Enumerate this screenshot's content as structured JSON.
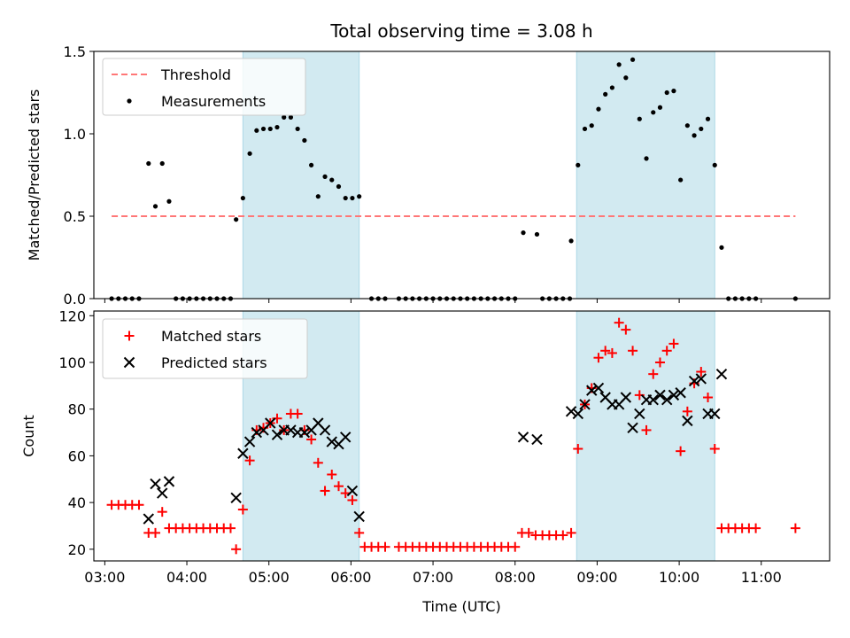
{
  "chart_data": [
    {
      "type": "scatter",
      "title": "Total observing time = 3.08 h",
      "xlabel": "",
      "ylabel": "Matched/Predicted stars",
      "ylim": [
        0,
        1.5
      ],
      "yticks": [
        "0.0",
        "0.5",
        "1.0",
        "1.5"
      ],
      "xlim": [
        "02:52",
        "11:50"
      ],
      "shaded_intervals": [
        [
          "04:41",
          "06:06"
        ],
        [
          "08:45",
          "10:26"
        ]
      ],
      "shade_color": "#add8e6",
      "grid": false,
      "legend": {
        "position": "top-left",
        "entries": [
          "Threshold",
          "Measurements"
        ]
      },
      "threshold": {
        "name": "Threshold",
        "value": 0.5,
        "x_range": [
          "03:05",
          "11:25"
        ],
        "color": "#ff7777"
      },
      "measurements": {
        "name": "Measurements",
        "color": "#000000",
        "points": [
          [
            "03:05",
            0
          ],
          [
            "03:10",
            0
          ],
          [
            "03:15",
            0
          ],
          [
            "03:20",
            0
          ],
          [
            "03:25",
            0
          ],
          [
            "03:32",
            0.82
          ],
          [
            "03:37",
            0.56
          ],
          [
            "03:42",
            0.82
          ],
          [
            "03:47",
            0.59
          ],
          [
            "03:52",
            0
          ],
          [
            "03:57",
            0
          ],
          [
            "04:02",
            0
          ],
          [
            "04:07",
            0
          ],
          [
            "04:12",
            0
          ],
          [
            "04:17",
            0
          ],
          [
            "04:22",
            0
          ],
          [
            "04:27",
            0
          ],
          [
            "04:32",
            0
          ],
          [
            "04:36",
            0.48
          ],
          [
            "04:41",
            0.61
          ],
          [
            "04:46",
            0.88
          ],
          [
            "04:51",
            1.02
          ],
          [
            "04:56",
            1.03
          ],
          [
            "05:01",
            1.03
          ],
          [
            "05:06",
            1.04
          ],
          [
            "05:11",
            1.1
          ],
          [
            "05:16",
            1.1
          ],
          [
            "05:21",
            1.03
          ],
          [
            "05:26",
            0.96
          ],
          [
            "05:31",
            0.81
          ],
          [
            "05:36",
            0.62
          ],
          [
            "05:41",
            0.74
          ],
          [
            "05:46",
            0.72
          ],
          [
            "05:51",
            0.68
          ],
          [
            "05:56",
            0.61
          ],
          [
            "06:01",
            0.61
          ],
          [
            "06:06",
            0.62
          ],
          [
            "06:15",
            0
          ],
          [
            "06:20",
            0
          ],
          [
            "06:25",
            0
          ],
          [
            "06:35",
            0
          ],
          [
            "06:40",
            0
          ],
          [
            "06:45",
            0
          ],
          [
            "06:50",
            0
          ],
          [
            "06:55",
            0
          ],
          [
            "07:00",
            0
          ],
          [
            "07:05",
            0
          ],
          [
            "07:10",
            0
          ],
          [
            "07:15",
            0
          ],
          [
            "07:20",
            0
          ],
          [
            "07:25",
            0
          ],
          [
            "07:30",
            0
          ],
          [
            "07:35",
            0
          ],
          [
            "07:40",
            0
          ],
          [
            "07:45",
            0
          ],
          [
            "07:50",
            0
          ],
          [
            "07:55",
            0
          ],
          [
            "08:00",
            0
          ],
          [
            "08:06",
            0.4
          ],
          [
            "08:16",
            0.39
          ],
          [
            "08:20",
            0
          ],
          [
            "08:25",
            0
          ],
          [
            "08:30",
            0
          ],
          [
            "08:35",
            0
          ],
          [
            "08:40",
            0
          ],
          [
            "08:41",
            0.35
          ],
          [
            "08:46",
            0.81
          ],
          [
            "08:51",
            1.03
          ],
          [
            "08:56",
            1.05
          ],
          [
            "09:01",
            1.15
          ],
          [
            "09:06",
            1.24
          ],
          [
            "09:11",
            1.28
          ],
          [
            "09:16",
            1.42
          ],
          [
            "09:21",
            1.34
          ],
          [
            "09:26",
            1.45
          ],
          [
            "09:31",
            1.09
          ],
          [
            "09:36",
            0.85
          ],
          [
            "09:41",
            1.13
          ],
          [
            "09:46",
            1.16
          ],
          [
            "09:51",
            1.25
          ],
          [
            "09:56",
            1.26
          ],
          [
            "10:01",
            0.72
          ],
          [
            "10:06",
            1.05
          ],
          [
            "10:11",
            0.99
          ],
          [
            "10:16",
            1.03
          ],
          [
            "10:21",
            1.09
          ],
          [
            "10:26",
            0.81
          ],
          [
            "10:31",
            0.31
          ],
          [
            "10:36",
            0
          ],
          [
            "10:41",
            0
          ],
          [
            "10:46",
            0
          ],
          [
            "10:51",
            0
          ],
          [
            "10:56",
            0
          ],
          [
            "11:25",
            0
          ]
        ]
      },
      "xticks": [
        "03:00",
        "04:00",
        "05:00",
        "06:00",
        "07:00",
        "08:00",
        "09:00",
        "10:00",
        "11:00"
      ]
    },
    {
      "type": "scatter",
      "xlabel": "Time (UTC)",
      "ylabel": "Count",
      "ylim": [
        15,
        122
      ],
      "yticks": [
        "20",
        "40",
        "60",
        "80",
        "100",
        "120"
      ],
      "xlim": [
        "02:52",
        "11:50"
      ],
      "xticks": [
        "03:00",
        "04:00",
        "05:00",
        "06:00",
        "07:00",
        "08:00",
        "09:00",
        "10:00",
        "11:00"
      ],
      "shaded_intervals": [
        [
          "04:41",
          "06:06"
        ],
        [
          "08:45",
          "10:26"
        ]
      ],
      "grid": false,
      "legend": {
        "position": "top-left",
        "entries": [
          "Matched stars",
          "Predicted stars"
        ]
      },
      "series": [
        {
          "name": "Matched stars",
          "marker": "plus",
          "color": "#ff0000",
          "points": [
            [
              "03:05",
              39
            ],
            [
              "03:10",
              39
            ],
            [
              "03:15",
              39
            ],
            [
              "03:20",
              39
            ],
            [
              "03:25",
              39
            ],
            [
              "03:32",
              27
            ],
            [
              "03:37",
              27
            ],
            [
              "03:42",
              36
            ],
            [
              "03:47",
              29
            ],
            [
              "03:52",
              29
            ],
            [
              "03:57",
              29
            ],
            [
              "04:02",
              29
            ],
            [
              "04:07",
              29
            ],
            [
              "04:12",
              29
            ],
            [
              "04:17",
              29
            ],
            [
              "04:22",
              29
            ],
            [
              "04:27",
              29
            ],
            [
              "04:32",
              29
            ],
            [
              "04:36",
              20
            ],
            [
              "04:41",
              37
            ],
            [
              "04:46",
              58
            ],
            [
              "04:51",
              71
            ],
            [
              "04:56",
              72
            ],
            [
              "05:01",
              74
            ],
            [
              "05:06",
              76
            ],
            [
              "05:11",
              71
            ],
            [
              "05:16",
              78
            ],
            [
              "05:21",
              78
            ],
            [
              "05:26",
              71
            ],
            [
              "05:31",
              67
            ],
            [
              "05:36",
              57
            ],
            [
              "05:41",
              45
            ],
            [
              "05:46",
              52
            ],
            [
              "05:51",
              47
            ],
            [
              "05:56",
              44
            ],
            [
              "06:01",
              41
            ],
            [
              "06:06",
              27
            ],
            [
              "06:10",
              21
            ],
            [
              "06:15",
              21
            ],
            [
              "06:20",
              21
            ],
            [
              "06:25",
              21
            ],
            [
              "06:35",
              21
            ],
            [
              "06:40",
              21
            ],
            [
              "06:45",
              21
            ],
            [
              "06:50",
              21
            ],
            [
              "06:55",
              21
            ],
            [
              "07:00",
              21
            ],
            [
              "07:05",
              21
            ],
            [
              "07:10",
              21
            ],
            [
              "07:15",
              21
            ],
            [
              "07:20",
              21
            ],
            [
              "07:25",
              21
            ],
            [
              "07:30",
              21
            ],
            [
              "07:35",
              21
            ],
            [
              "07:40",
              21
            ],
            [
              "07:45",
              21
            ],
            [
              "07:50",
              21
            ],
            [
              "07:55",
              21
            ],
            [
              "08:00",
              21
            ],
            [
              "08:05",
              27
            ],
            [
              "08:10",
              27
            ],
            [
              "08:15",
              26
            ],
            [
              "08:20",
              26
            ],
            [
              "08:25",
              26
            ],
            [
              "08:30",
              26
            ],
            [
              "08:35",
              26
            ],
            [
              "08:41",
              27
            ],
            [
              "08:46",
              63
            ],
            [
              "08:51",
              82
            ],
            [
              "08:56",
              89
            ],
            [
              "09:01",
              102
            ],
            [
              "09:06",
              105
            ],
            [
              "09:11",
              104
            ],
            [
              "09:16",
              117
            ],
            [
              "09:21",
              114
            ],
            [
              "09:26",
              105
            ],
            [
              "09:31",
              86
            ],
            [
              "09:36",
              71
            ],
            [
              "09:41",
              95
            ],
            [
              "09:46",
              100
            ],
            [
              "09:51",
              105
            ],
            [
              "09:56",
              108
            ],
            [
              "10:01",
              62
            ],
            [
              "10:06",
              79
            ],
            [
              "10:11",
              91
            ],
            [
              "10:16",
              96
            ],
            [
              "10:21",
              85
            ],
            [
              "10:26",
              63
            ],
            [
              "10:31",
              29
            ],
            [
              "10:36",
              29
            ],
            [
              "10:41",
              29
            ],
            [
              "10:46",
              29
            ],
            [
              "10:51",
              29
            ],
            [
              "10:56",
              29
            ],
            [
              "11:25",
              29
            ]
          ]
        },
        {
          "name": "Predicted stars",
          "marker": "x",
          "color": "#000000",
          "points": [
            [
              "03:32",
              33
            ],
            [
              "03:37",
              48
            ],
            [
              "03:42",
              44
            ],
            [
              "03:47",
              49
            ],
            [
              "04:36",
              42
            ],
            [
              "04:41",
              61
            ],
            [
              "04:46",
              66
            ],
            [
              "04:51",
              70
            ],
            [
              "04:56",
              71
            ],
            [
              "05:01",
              74
            ],
            [
              "05:06",
              69
            ],
            [
              "05:11",
              71
            ],
            [
              "05:16",
              71
            ],
            [
              "05:21",
              70
            ],
            [
              "05:26",
              70
            ],
            [
              "05:31",
              71
            ],
            [
              "05:36",
              74
            ],
            [
              "05:41",
              71
            ],
            [
              "05:46",
              66
            ],
            [
              "05:51",
              65
            ],
            [
              "05:56",
              68
            ],
            [
              "06:01",
              45
            ],
            [
              "06:06",
              34
            ],
            [
              "08:06",
              68
            ],
            [
              "08:16",
              67
            ],
            [
              "08:41",
              79
            ],
            [
              "08:46",
              78
            ],
            [
              "08:51",
              82
            ],
            [
              "08:56",
              88
            ],
            [
              "09:01",
              89
            ],
            [
              "09:06",
              85
            ],
            [
              "09:11",
              82
            ],
            [
              "09:16",
              82
            ],
            [
              "09:21",
              85
            ],
            [
              "09:26",
              72
            ],
            [
              "09:31",
              78
            ],
            [
              "09:36",
              84
            ],
            [
              "09:41",
              84
            ],
            [
              "09:46",
              86
            ],
            [
              "09:51",
              84
            ],
            [
              "09:56",
              86
            ],
            [
              "10:01",
              87
            ],
            [
              "10:06",
              75
            ],
            [
              "10:11",
              92
            ],
            [
              "10:16",
              93
            ],
            [
              "10:21",
              78
            ],
            [
              "10:26",
              78
            ],
            [
              "10:31",
              95
            ]
          ]
        }
      ]
    }
  ]
}
